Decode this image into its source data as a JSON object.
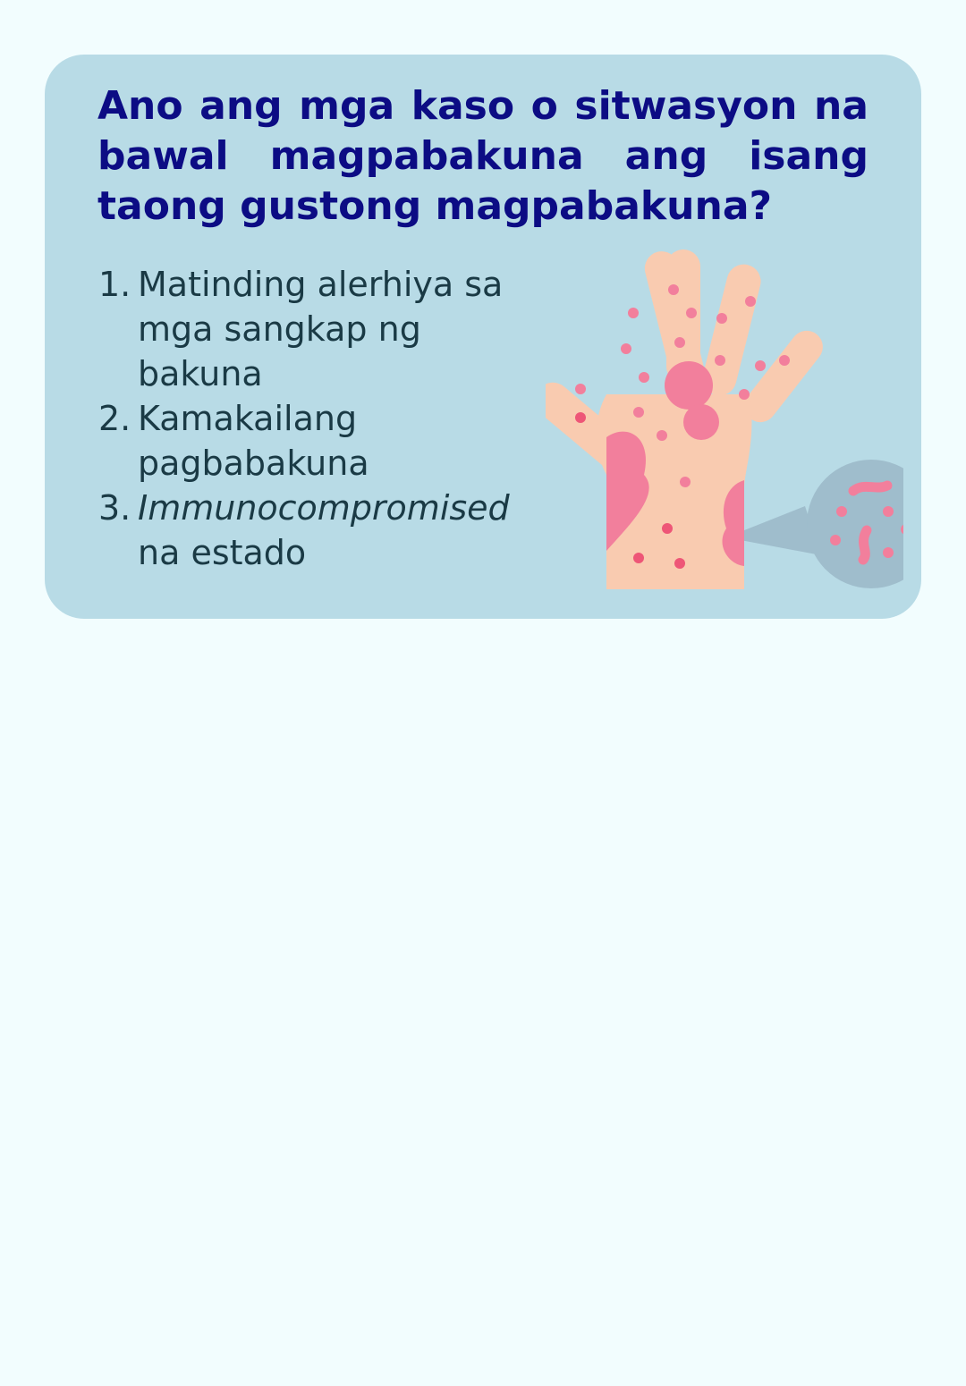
{
  "card": {
    "title": "Ano ang mga kaso o sitwasyon na bawal magpabakuna ang isang taong gustong magpabakuna?",
    "items": [
      {
        "number": "1.",
        "text": "Matinding alerhiya sa mga sangkap ng bakuna",
        "emphasis": "",
        "rest": ""
      },
      {
        "number": "2.",
        "text": "Kamakailang pagbabakuna",
        "emphasis": "",
        "rest": ""
      },
      {
        "number": "3.",
        "text": "",
        "emphasis": "Immunocompromised",
        "rest": " na estado"
      }
    ]
  },
  "illustration": {
    "icon": "rash-hand-icon",
    "colors": {
      "skin": "#f9cbb0",
      "rash": "#f27f9c",
      "spot_dark": "#ee5677",
      "bubble": "#9fbdcc"
    }
  },
  "colors": {
    "background": "#f2fdfe",
    "card": "#b8dbe6",
    "title": "#0c0c84",
    "body_text": "#1a3a45"
  }
}
